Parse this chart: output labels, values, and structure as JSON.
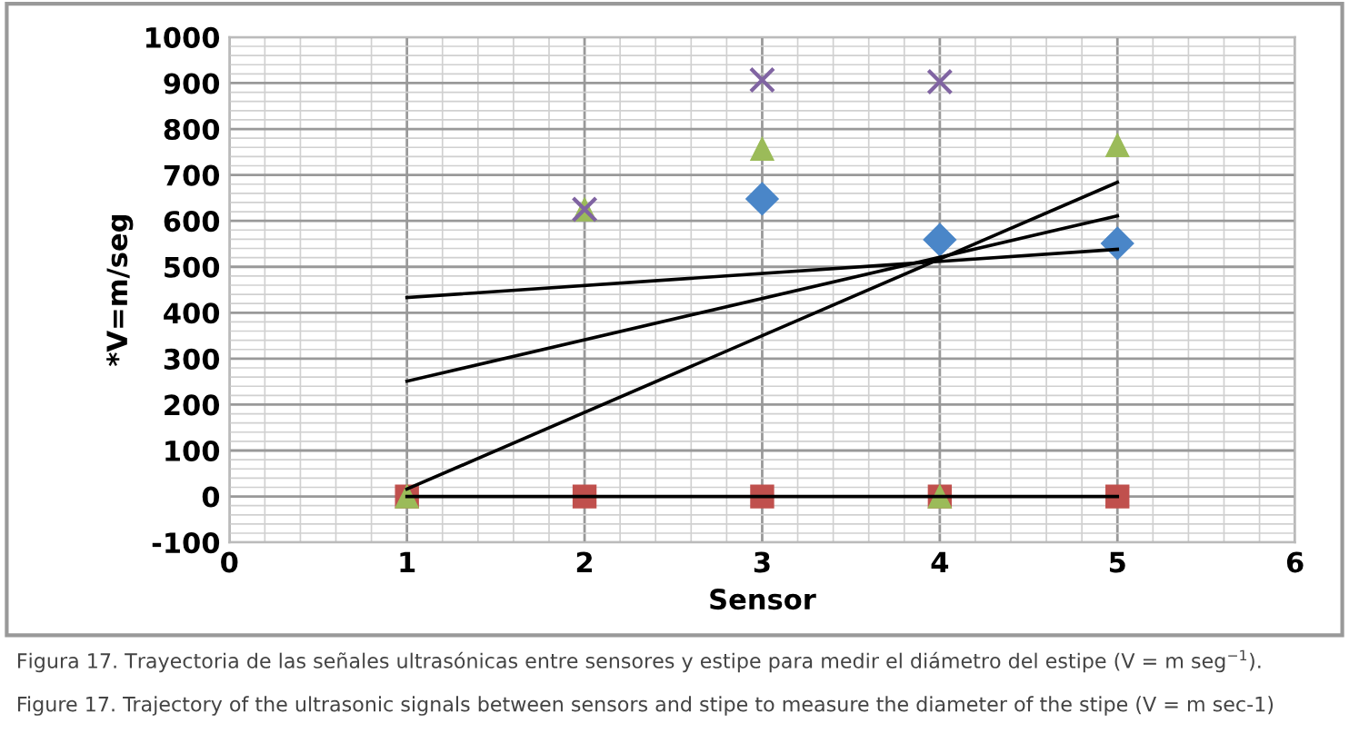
{
  "chart_data": {
    "type": "scatter",
    "xlabel": "Sensor",
    "ylabel": "*V=m/seg",
    "xlim": [
      0,
      6
    ],
    "xticks": [
      0,
      1,
      2,
      3,
      4,
      5,
      6
    ],
    "ylim": [
      -100,
      1000
    ],
    "yticks": [
      -100,
      0,
      100,
      200,
      300,
      400,
      500,
      600,
      700,
      800,
      900,
      1000
    ],
    "grid": true,
    "legend": false,
    "series": [
      {
        "marker": "diamond",
        "color": "#4a86c8",
        "x": [
          3,
          4,
          5
        ],
        "values": [
          648,
          559,
          551
        ]
      },
      {
        "marker": "square",
        "color": "#c0504d",
        "x": [
          1,
          2,
          3,
          4,
          5
        ],
        "values": [
          0,
          0,
          0,
          0,
          0
        ]
      },
      {
        "marker": "triangle",
        "color": "#9bbb59",
        "x": [
          1,
          2,
          3,
          4,
          5
        ],
        "values": [
          0,
          625,
          757,
          0,
          765
        ]
      },
      {
        "marker": "cross",
        "color": "#8064a2",
        "x": [
          2,
          3,
          4
        ],
        "values": [
          625,
          907,
          903
        ]
      },
      {
        "type": "line",
        "color": "#000000",
        "x": [
          1,
          5
        ],
        "values": [
          433,
          538
        ]
      },
      {
        "type": "line",
        "color": "#000000",
        "x": [
          1,
          5
        ],
        "values": [
          251,
          611
        ]
      },
      {
        "type": "line",
        "color": "#000000",
        "x": [
          1,
          5
        ],
        "values": [
          16,
          684
        ]
      },
      {
        "type": "line",
        "color": "#000000",
        "x": [
          1,
          5
        ],
        "values": [
          0,
          0
        ]
      }
    ],
    "annotations": [
      "Figura 17. Trayectoria de las señales ultrasónicas entre sensores y estipe para medir el diámetro del estipe (V = m seg$^{−1}$).",
      "Figure 17. Trajectory of the ultrasonic signals between sensors and stipe to measure the diameter of the stipe (V = m sec-1)"
    ]
  }
}
